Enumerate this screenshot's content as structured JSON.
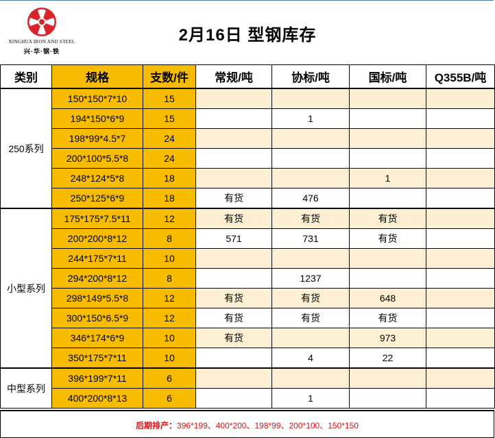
{
  "header": {
    "title": "2月16日 型钢库存",
    "logo": {
      "english": "XINGHUA IRON AND STEEL",
      "chinese": "兴·华·钢·铁",
      "color": "#d8242a"
    }
  },
  "table": {
    "columns": [
      "类别",
      "规格",
      "支数/件",
      "常规/吨",
      "协标/吨",
      "国标/吨",
      "Q355B/吨"
    ],
    "groups": [
      {
        "category": "250系列",
        "rows": [
          {
            "spec": "150*150*7*10",
            "qty": "15",
            "normal": "",
            "assoc": "",
            "national": "",
            "q355b": ""
          },
          {
            "spec": "194*150*6*9",
            "qty": "15",
            "normal": "",
            "assoc": "1",
            "national": "",
            "q355b": ""
          },
          {
            "spec": "198*99*4.5*7",
            "qty": "24",
            "normal": "",
            "assoc": "",
            "national": "",
            "q355b": ""
          },
          {
            "spec": "200*100*5.5*8",
            "qty": "24",
            "normal": "",
            "assoc": "",
            "national": "",
            "q355b": ""
          },
          {
            "spec": "248*124*5*8",
            "qty": "18",
            "normal": "",
            "assoc": "",
            "national": "1",
            "q355b": ""
          },
          {
            "spec": "250*125*6*9",
            "qty": "18",
            "normal": "有货",
            "assoc": "476",
            "national": "",
            "q355b": ""
          }
        ]
      },
      {
        "category": "小型系列",
        "rows": [
          {
            "spec": "175*175*7.5*11",
            "qty": "12",
            "normal": "有货",
            "assoc": "有货",
            "national": "有货",
            "q355b": ""
          },
          {
            "spec": "200*200*8*12",
            "qty": "8",
            "normal": "571",
            "assoc": "731",
            "national": "有货",
            "q355b": ""
          },
          {
            "spec": "244*175*7*11",
            "qty": "10",
            "normal": "",
            "assoc": "",
            "national": "",
            "q355b": ""
          },
          {
            "spec": "294*200*8*12",
            "qty": "8",
            "normal": "",
            "assoc": "1237",
            "national": "",
            "q355b": ""
          },
          {
            "spec": "298*149*5.5*8",
            "qty": "12",
            "normal": "有货",
            "assoc": "有货",
            "national": "648",
            "q355b": ""
          },
          {
            "spec": "300*150*6.5*9",
            "qty": "12",
            "normal": "有货",
            "assoc": "有货",
            "national": "有货",
            "q355b": ""
          },
          {
            "spec": "346*174*6*9",
            "qty": "10",
            "normal": "有货",
            "assoc": "",
            "national": "973",
            "q355b": ""
          },
          {
            "spec": "350*175*7*11",
            "qty": "10",
            "normal": "",
            "assoc": "4",
            "national": "22",
            "q355b": ""
          }
        ]
      },
      {
        "category": "中型系列",
        "rows": [
          {
            "spec": "396*199*7*11",
            "qty": "6",
            "normal": "",
            "assoc": "",
            "national": "",
            "q355b": ""
          },
          {
            "spec": "400*200*8*13",
            "qty": "6",
            "normal": "",
            "assoc": "1",
            "national": "",
            "q355b": ""
          }
        ]
      }
    ]
  },
  "footer": {
    "label": "后期排产：",
    "schedule": "396*199、400*200、198*99、200*100、150*150"
  },
  "colors": {
    "accent_gold": "#f7bb00",
    "row_tint": "#fdefd2",
    "footer_text": "#e01010"
  }
}
